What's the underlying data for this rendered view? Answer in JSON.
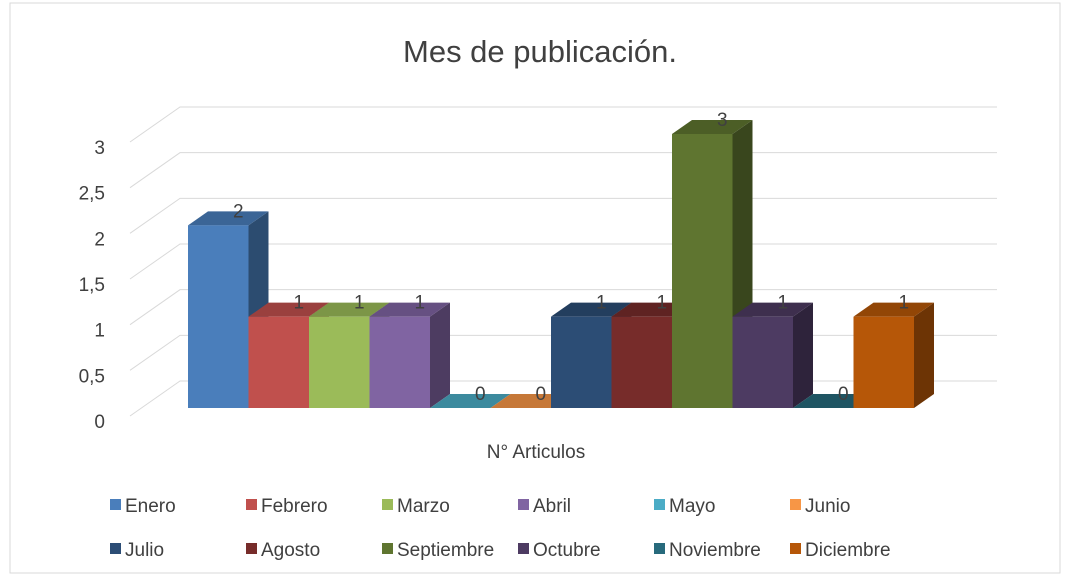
{
  "chart_data": {
    "type": "bar3d",
    "title": "Mes de publicación.",
    "categories": [
      "N° Articulos"
    ],
    "series": [
      {
        "name": "Enero",
        "color": "#4a7ebb",
        "values": [
          2
        ]
      },
      {
        "name": "Febrero",
        "color": "#c0504d",
        "values": [
          1
        ]
      },
      {
        "name": "Marzo",
        "color": "#9bbb59",
        "values": [
          1
        ]
      },
      {
        "name": "Abril",
        "color": "#8064a2",
        "values": [
          1
        ]
      },
      {
        "name": "Mayo",
        "color": "#4bacc6",
        "values": [
          0
        ]
      },
      {
        "name": "Junio",
        "color": "#f79646",
        "values": [
          0
        ]
      },
      {
        "name": "Julio",
        "color": "#2c4d75",
        "values": [
          1
        ]
      },
      {
        "name": "Agosto",
        "color": "#772c2a",
        "values": [
          1
        ]
      },
      {
        "name": "Septiembre",
        "color": "#5f7530",
        "values": [
          3
        ]
      },
      {
        "name": "Octubre",
        "color": "#4d3b62",
        "values": [
          1
        ]
      },
      {
        "name": "Noviembre",
        "color": "#276a7c",
        "values": [
          0
        ]
      },
      {
        "name": "Diciembre",
        "color": "#b65708",
        "values": [
          1
        ]
      }
    ],
    "ylim": [
      0,
      3
    ],
    "yticks": [
      0,
      {
        "value": 0.5,
        "label": "0,5"
      },
      1,
      {
        "value": 1.5,
        "label": "1,5"
      },
      2,
      {
        "value": 2.5,
        "label": "2,5"
      },
      3
    ],
    "grid": true
  }
}
